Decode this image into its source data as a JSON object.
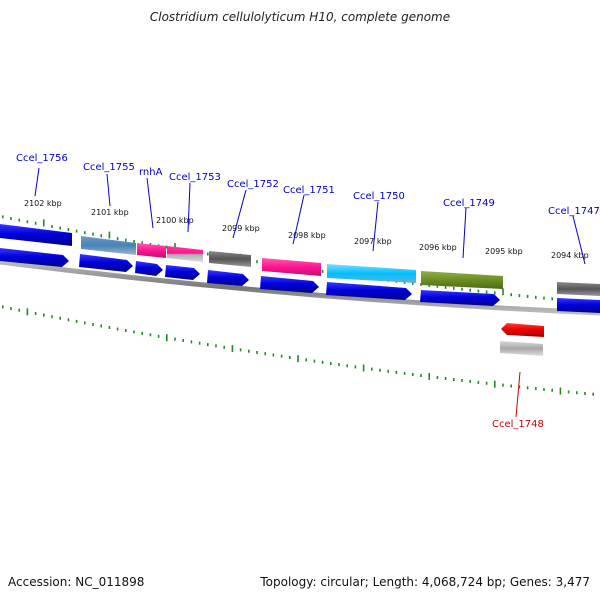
{
  "title": "Clostridium cellulolyticum H10, complete genome",
  "footer": {
    "accession": "Accession: NC_011898",
    "summary": "Topology: circular; Length: 4,068,724 bp; Genes: 3,477"
  },
  "kbp_ticks": [
    "2102 kbp",
    "2101 kbp",
    "2100 kbp",
    "2099 kbp",
    "2098 kbp",
    "2097 kbp",
    "2096 kbp",
    "2095 kbp",
    "2094 kbp"
  ],
  "genes": [
    {
      "name": "Ccel_1756",
      "color": "#0000cc"
    },
    {
      "name": "Ccel_1755",
      "color": "#0000cc"
    },
    {
      "name": "rnhA",
      "color": "#0000cc"
    },
    {
      "name": "Ccel_1753",
      "color": "#0000cc"
    },
    {
      "name": "Ccel_1752",
      "color": "#0000cc"
    },
    {
      "name": "Ccel_1751",
      "color": "#0000cc"
    },
    {
      "name": "Ccel_1750",
      "color": "#0000cc"
    },
    {
      "name": "Ccel_1749",
      "color": "#0000cc"
    },
    {
      "name": "Ccel_1747",
      "color": "#0000cc"
    },
    {
      "name": "Ccel_1748",
      "color": "#cc0000"
    }
  ],
  "colors": {
    "forward_gene": "#0000dd",
    "reverse_gene": "#ee0000",
    "backbone": "#808080",
    "tick": "#228B22",
    "category_blue": "#4682b4",
    "category_pink": "#ff1493",
    "category_gray": "#555555",
    "category_cyan": "#00bfff",
    "category_olive": "#6b8e23"
  }
}
